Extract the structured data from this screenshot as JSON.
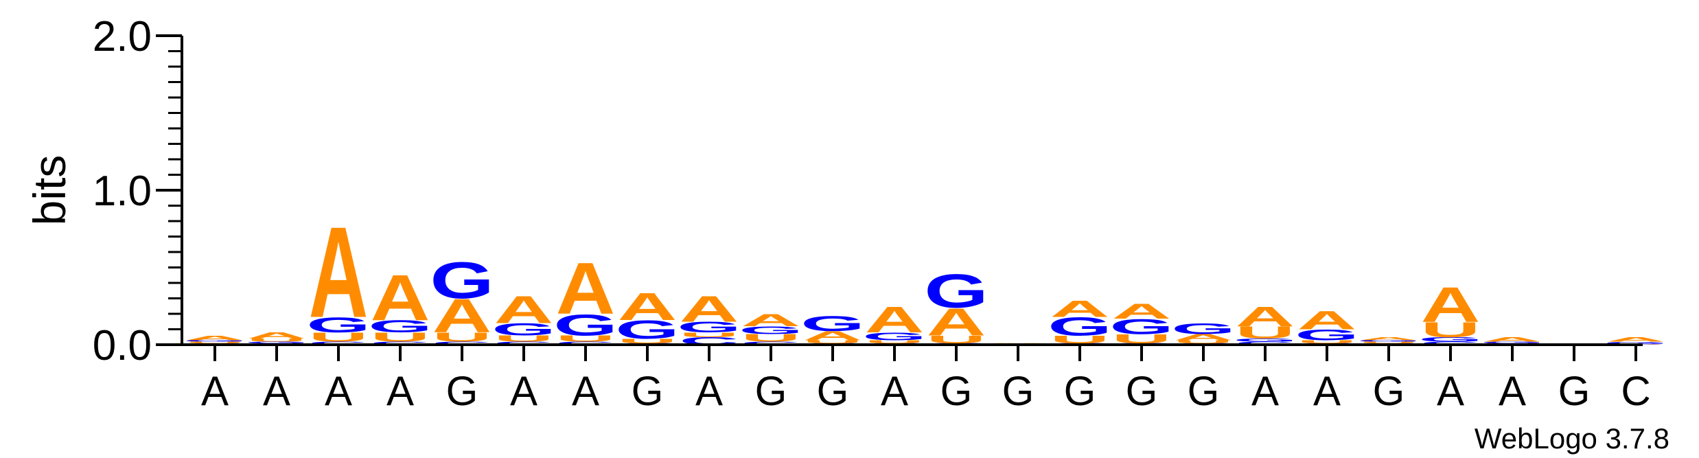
{
  "chart_data": {
    "type": "sequence-logo",
    "ylabel": "bits",
    "ylim": [
      0,
      2
    ],
    "yticks": [
      "0.0",
      "1.0",
      "2.0"
    ],
    "footer": "WebLogo 3.7.8",
    "positions": [
      "A",
      "A",
      "A",
      "A",
      "G",
      "A",
      "A",
      "G",
      "A",
      "G",
      "G",
      "A",
      "G",
      "G",
      "G",
      "G",
      "G",
      "A",
      "A",
      "G",
      "A",
      "A",
      "G",
      "C"
    ],
    "colors": {
      "A": "#ff8c00",
      "G": "#0000ff",
      "U": "#ff8c00",
      "C": "#0000ff"
    },
    "stacks": [
      [
        [
          "C",
          0.01
        ],
        [
          "U",
          0.01
        ],
        [
          "G",
          0.01
        ],
        [
          "A",
          0.03
        ]
      ],
      [
        [
          "C",
          0.01
        ],
        [
          "G",
          0.01
        ],
        [
          "U",
          0.02
        ],
        [
          "A",
          0.04
        ]
      ],
      [
        [
          "C",
          0.02
        ],
        [
          "U",
          0.06
        ],
        [
          "G",
          0.1
        ],
        [
          "A",
          0.6
        ]
      ],
      [
        [
          "C",
          0.02
        ],
        [
          "U",
          0.06
        ],
        [
          "G",
          0.08
        ],
        [
          "A",
          0.3
        ]
      ],
      [
        [
          "C",
          0.02
        ],
        [
          "U",
          0.06
        ],
        [
          "A",
          0.22
        ],
        [
          "G",
          0.24
        ]
      ],
      [
        [
          "C",
          0.02
        ],
        [
          "U",
          0.04
        ],
        [
          "G",
          0.08
        ],
        [
          "A",
          0.18
        ]
      ],
      [
        [
          "C",
          0.02
        ],
        [
          "U",
          0.04
        ],
        [
          "G",
          0.14
        ],
        [
          "A",
          0.34
        ]
      ],
      [
        [
          "C",
          0.01
        ],
        [
          "U",
          0.03
        ],
        [
          "G",
          0.12
        ],
        [
          "A",
          0.18
        ]
      ],
      [
        [
          "C",
          0.05
        ],
        [
          "U",
          0.03
        ],
        [
          "G",
          0.07
        ],
        [
          "A",
          0.17
        ]
      ],
      [
        [
          "C",
          0.02
        ],
        [
          "U",
          0.05
        ],
        [
          "G",
          0.05
        ],
        [
          "A",
          0.08
        ]
      ],
      [
        [
          "C",
          0.01
        ],
        [
          "U",
          0.02
        ],
        [
          "A",
          0.06
        ],
        [
          "G",
          0.1
        ]
      ],
      [
        [
          "C",
          0.01
        ],
        [
          "U",
          0.02
        ],
        [
          "G",
          0.05
        ],
        [
          "A",
          0.17
        ]
      ],
      [
        [
          "C",
          0.01
        ],
        [
          "U",
          0.05
        ],
        [
          "A",
          0.18
        ],
        [
          "G",
          0.22
        ]
      ],
      [
        [
          "C",
          0.002
        ],
        [
          "U",
          0.003
        ],
        [
          "G",
          0.003
        ],
        [
          "A",
          0.004
        ]
      ],
      [
        [
          "C",
          0.01
        ],
        [
          "U",
          0.05
        ],
        [
          "G",
          0.12
        ],
        [
          "A",
          0.11
        ]
      ],
      [
        [
          "C",
          0.01
        ],
        [
          "U",
          0.06
        ],
        [
          "G",
          0.1
        ],
        [
          "A",
          0.1
        ]
      ],
      [
        [
          "C",
          0.01
        ],
        [
          "U",
          0.02
        ],
        [
          "A",
          0.04
        ],
        [
          "G",
          0.07
        ]
      ],
      [
        [
          "C",
          0.02
        ],
        [
          "G",
          0.02
        ],
        [
          "U",
          0.08
        ],
        [
          "A",
          0.13
        ]
      ],
      [
        [
          "C",
          0.01
        ],
        [
          "U",
          0.02
        ],
        [
          "G",
          0.07
        ],
        [
          "A",
          0.12
        ]
      ],
      [
        [
          "C",
          0.01
        ],
        [
          "U",
          0.01
        ],
        [
          "G",
          0.01
        ],
        [
          "A",
          0.02
        ]
      ],
      [
        [
          "C",
          0.02
        ],
        [
          "G",
          0.03
        ],
        [
          "U",
          0.1
        ],
        [
          "A",
          0.23
        ]
      ],
      [
        [
          "C",
          0.005
        ],
        [
          "U",
          0.005
        ],
        [
          "G",
          0.01
        ],
        [
          "A",
          0.03
        ]
      ],
      [
        [
          "C",
          0.001
        ],
        [
          "U",
          0.002
        ],
        [
          "G",
          0.002
        ],
        [
          "A",
          0.003
        ]
      ],
      [
        [
          "C",
          0.002
        ],
        [
          "U",
          0.003
        ],
        [
          "G",
          0.015
        ],
        [
          "A",
          0.03
        ]
      ]
    ]
  }
}
